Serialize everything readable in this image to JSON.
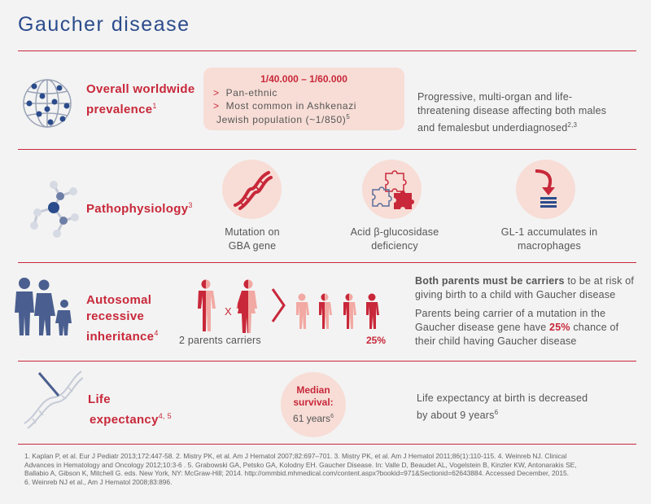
{
  "title": "Gaucher disease",
  "colors": {
    "accent": "#c8283a",
    "title_blue": "#2b4c8c",
    "icon_blue": "#4a5f8f",
    "pink": "#f7ddd6"
  },
  "prevalence": {
    "icon": "globe-network-icon",
    "heading": "Overall worldwide prevalence",
    "heading_line1": "Overall worldwide",
    "heading_line2": "prevalence",
    "heading_ref": "1",
    "range": "1/40.000 – 1/60.000",
    "bullets": [
      "Pan-ethnic",
      "Most common in Ashkenazi"
    ],
    "bullet_arrow": ">",
    "continuation": "Jewish population (~1/850)",
    "continuation_ref": "5",
    "description_line1": "Progressive, multi-organ and life-",
    "description_line2": "threatening disease affecting both  males",
    "description_line3": "and femalesbut underdiagnosed",
    "description_ref": "2,3"
  },
  "pathophysiology": {
    "icon": "molecule-icon",
    "heading": "Pathophysiology",
    "heading_ref": "3",
    "items": [
      {
        "icon": "dna-helix-icon",
        "line1": "Mutation on",
        "line2": "GBA gene"
      },
      {
        "icon": "puzzle-icon",
        "line1": "Acid β-glucosidase",
        "line2": "deficiency"
      },
      {
        "icon": "accumulation-arrow-icon",
        "line1": "GL-1 accumulates  in",
        "line2": "macrophages"
      }
    ]
  },
  "inheritance": {
    "icon": "family-icon",
    "heading_line1": "Autosomal",
    "heading_line2": "recessive",
    "heading_line3": "inheritance",
    "heading_ref": "4",
    "cross_symbol": "X",
    "parents_caption": "2 parents carriers",
    "chance_label": "25%",
    "para1_bold": "Both parents must be carriers",
    "para1_line1_rest": " to be at risk of",
    "para1_line2": "giving birth to a child with Gaucher disease",
    "para2_line1": "Parents being carrier of a mutation in the",
    "para2_line2_pre": "Gaucher disease gene have ",
    "para2_line2_bold": "25%",
    "para2_line2_post": " chance of",
    "para2_line3": "their child having Gaucher disease"
  },
  "life": {
    "icon": "dna-strand-icon",
    "heading_line1": "Life",
    "heading_line2": "expectancy",
    "heading_ref": "4, 5",
    "median_line1": "Median",
    "median_line2": "survival:",
    "median_value": "61 years",
    "median_ref": "6",
    "description_line1": "Life expectancy at birth is decreased",
    "description_line2": "by about 9 years",
    "description_ref": "6"
  },
  "references": [
    "1. Kaplan P, et al. Eur J Pediatr 2013;172:447-58. 2. Mistry PK, et al. Am J Hematol 2007;82:697–701. 3. Mistry PK, et al. Am J Hematol 2011;86(1):110-115. 4. Weinreb NJ. Clinical",
    "Advances in Hematology and Oncology 2012;10:3-6 . 5. Grabowski GA, Petsko GA, Kolodny EH. Gaucher Disease. In: Valle D, Beaudet AL, Vogelstein B, Kinzler KW, Antonarakis SE,",
    "Ballabio A, Gibson K, Mitchell G. eds. New York, NY: McGraw-Hill; 2014. http://ommbid.mhmedical.com/content.aspx?bookid=971&Sectionid=62643884. Accessed December, 2015.",
    "6. Weinreb NJ et al., Am J Hematol 2008;83:896."
  ]
}
